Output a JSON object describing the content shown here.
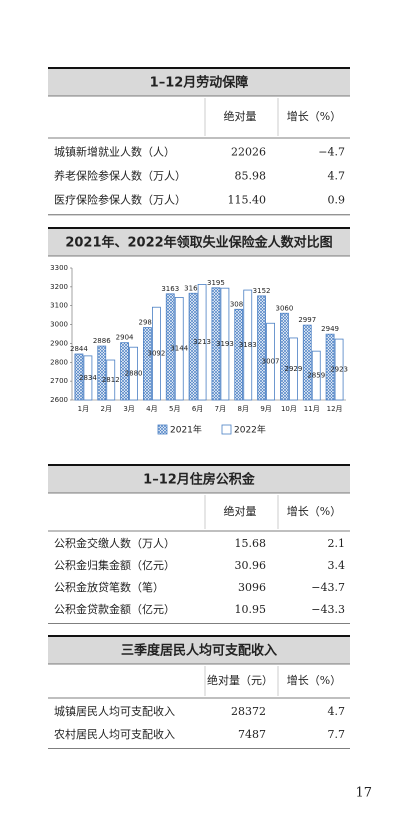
{
  "sections": [
    {
      "title": "1–12月劳动保障",
      "header": [
        "绝对量",
        "增长（%）"
      ],
      "rows": [
        [
          "城镇新增就业人数（人）",
          "22026",
          "−4.7"
        ],
        [
          "养老保险参保人数（万人）",
          "85.98",
          "4.7"
        ],
        [
          "医疗保险参保人数（万人）",
          "115.40",
          "0.9"
        ]
      ]
    },
    {
      "title": "1–12月住房公积金",
      "header": [
        "绝对量",
        "增长（%）"
      ],
      "rows": [
        [
          "公积金交缴人数（万人）",
          "15.68",
          "2.1"
        ],
        [
          "公积金归集金额（亿元）",
          "30.96",
          "3.4"
        ],
        [
          "公积金放贷笔数（笔）",
          "3096",
          "−43.7"
        ],
        [
          "公积金贷款金额（亿元）",
          "10.95",
          "−43.3"
        ]
      ]
    },
    {
      "title": "三季度居民人均可支配收入",
      "header": [
        "绝对量（元）",
        "增长（%）"
      ],
      "rows": [
        [
          "城镇居民人均可支配收入",
          "28372",
          "4.7"
        ],
        [
          "农村居民人均可支配收入",
          "7487",
          "7.7"
        ]
      ]
    }
  ],
  "chart_data": {
    "type": "bar",
    "title": "2021年、2022年领取失业保险金人数对比图",
    "categories": [
      "1月",
      "2月",
      "3月",
      "4月",
      "5月",
      "6月",
      "7月",
      "8月",
      "9月",
      "10月",
      "11月",
      "12月"
    ],
    "series": [
      {
        "name": "2021年",
        "color": "#4a7fc4",
        "values": [
          2844,
          2886,
          2904,
          2984,
          3163,
          3166,
          3195,
          3081,
          3152,
          3060,
          2997,
          2949
        ]
      },
      {
        "name": "2022年",
        "color": "#4a7fc4",
        "values": [
          2834,
          2812,
          2880,
          3092,
          3144,
          3213,
          3193,
          3183,
          3007,
          2929,
          2859,
          2923
        ]
      }
    ],
    "ylim": [
      2600,
      3300
    ],
    "yticks": [
      2600,
      2700,
      2800,
      2900,
      3000,
      3100,
      3200,
      3300
    ]
  },
  "page_number": "17"
}
